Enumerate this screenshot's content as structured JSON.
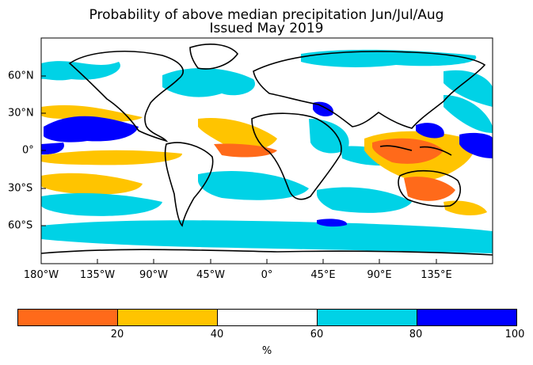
{
  "title": {
    "line1": "Probability of above median precipitation Jun/Jul/Aug",
    "line2": "Issued May 2019"
  },
  "axes": {
    "x_ticks": [
      "180°W",
      "135°W",
      "90°W",
      "45°W",
      "0°",
      "45°E",
      "90°E",
      "135°E"
    ],
    "y_ticks": [
      "60°N",
      "30°N",
      "0°",
      "30°S",
      "60°S"
    ]
  },
  "colorbar": {
    "ticks": [
      "20",
      "40",
      "60",
      "80",
      "100"
    ],
    "unit": "%",
    "bins": [
      {
        "range": [
          0,
          20
        ],
        "color": "#ff6a1a"
      },
      {
        "range": [
          20,
          40
        ],
        "color": "#ffc400"
      },
      {
        "range": [
          40,
          60
        ],
        "color": "#ffffff"
      },
      {
        "range": [
          60,
          80
        ],
        "color": "#00d2e6"
      },
      {
        "range": [
          80,
          100
        ],
        "color": "#0000ff"
      }
    ]
  },
  "regions": [
    {
      "name": "north-atlantic-cyan",
      "color": "#00d2e6"
    },
    {
      "name": "east-pacific-blue",
      "color": "#0000ff"
    },
    {
      "name": "tropical-atlantic-orange",
      "color": "#ffc400"
    },
    {
      "name": "maritime-continent-orange",
      "color": "#ff6a1a"
    },
    {
      "name": "southern-ocean-cyan",
      "color": "#00d2e6"
    }
  ]
}
